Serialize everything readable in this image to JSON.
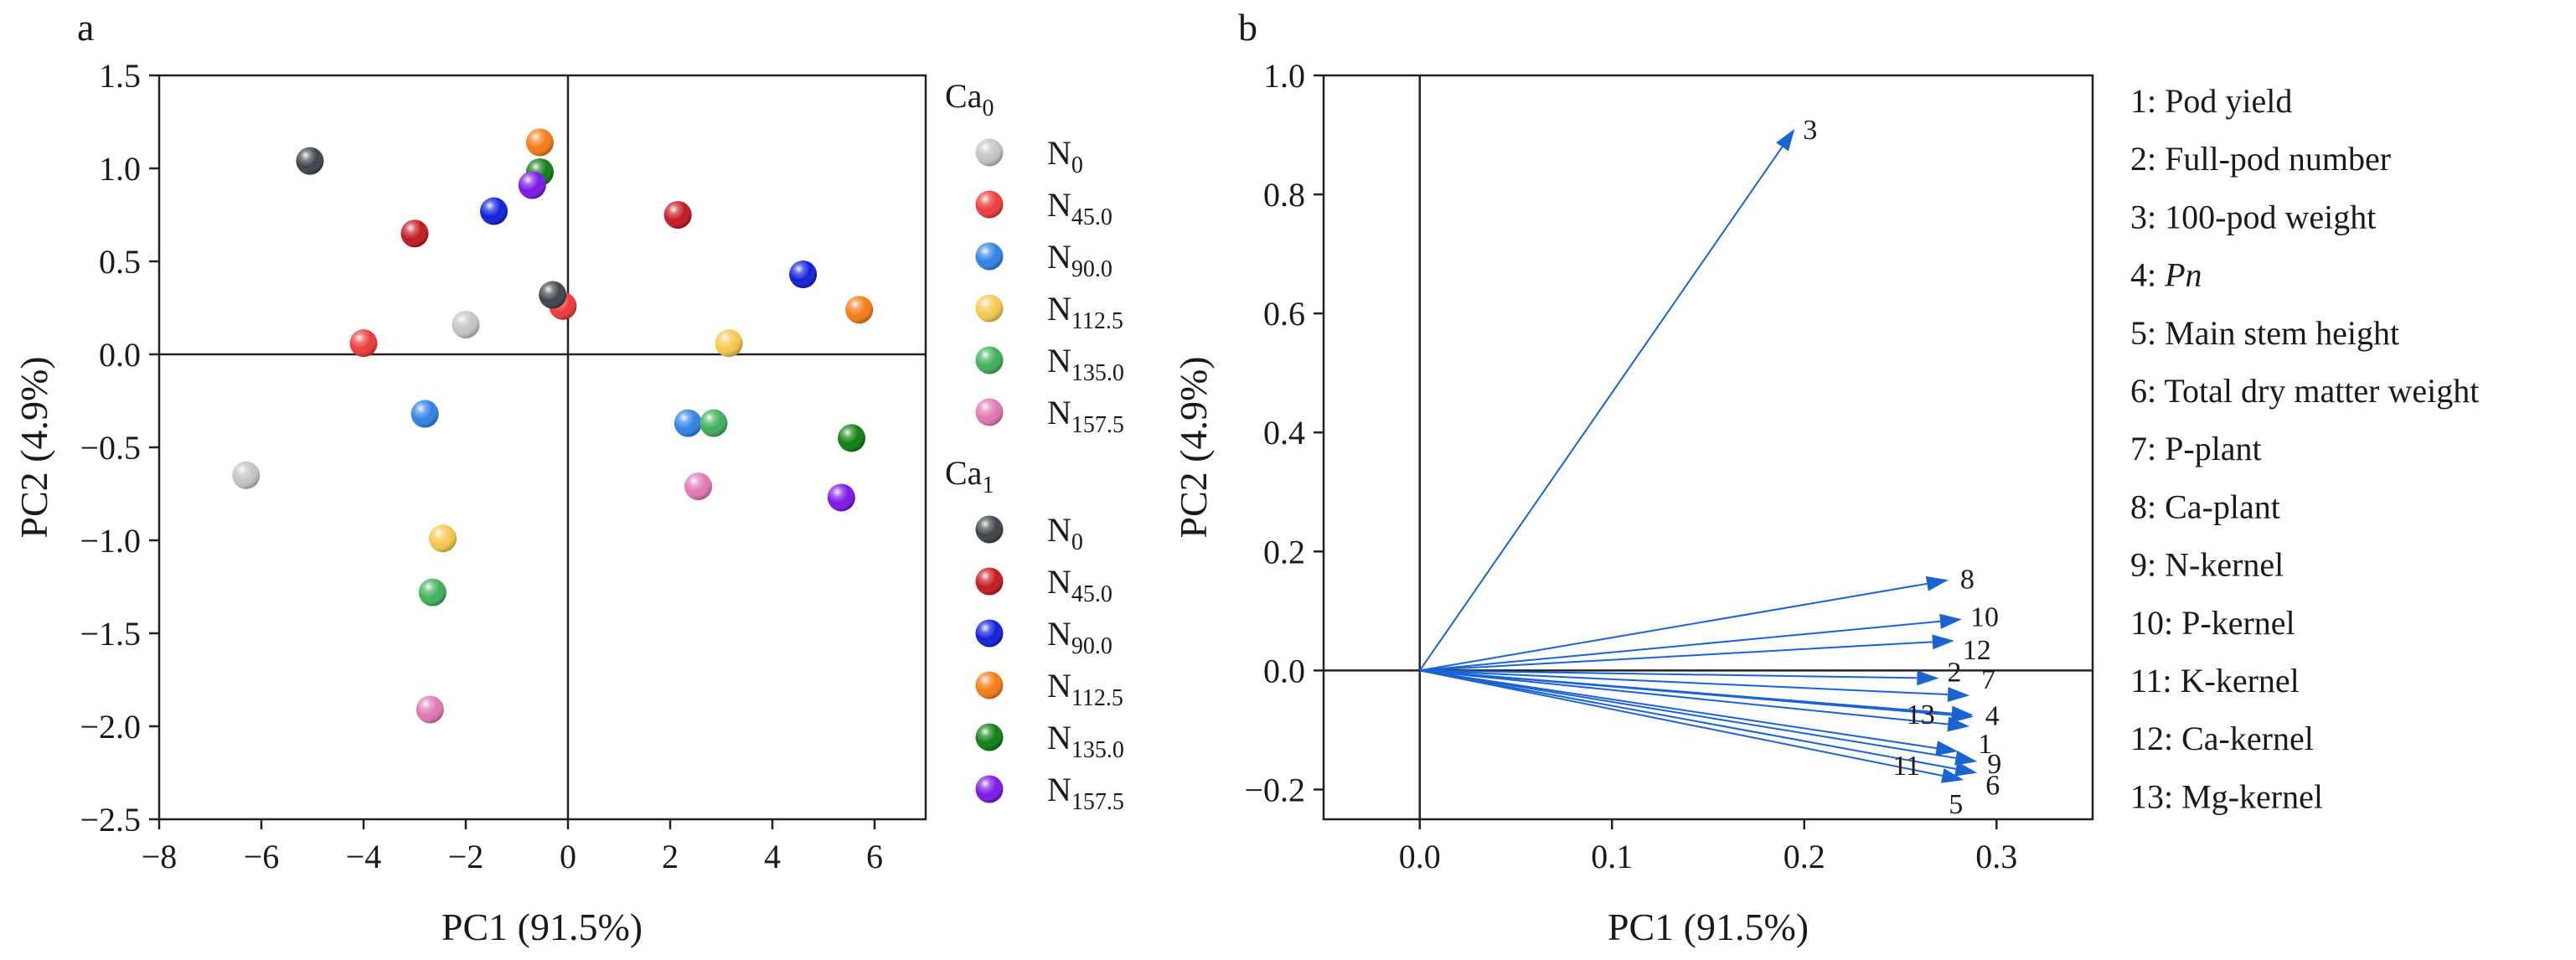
{
  "figure": {
    "panel_a": "a",
    "panel_b": "b"
  },
  "colors": {
    "Ca0": {
      "N0": "#c4c4c4",
      "N45.0": "#ee3b3b",
      "N90.0": "#2f82e6",
      "N112.5": "#f7c84e",
      "N135.0": "#3fb05a",
      "N157.5": "#e178b4"
    },
    "Ca1": {
      "N0": "#3f444a",
      "N45.0": "#c41820",
      "N90.0": "#0f1fd9",
      "N112.5": "#f57b16",
      "N135.0": "#0d7f12",
      "N157.5": "#7d15e8"
    },
    "arrow": "#1a63d1"
  },
  "chart_data": [
    {
      "type": "scatter",
      "panel": "a",
      "xlabel": "PC1 (91.5%)",
      "ylabel": "PC2 (4.9%)",
      "xlim": [
        -8,
        7
      ],
      "ylim": [
        -2.5,
        1.5
      ],
      "xticks": [
        -8,
        -6,
        -4,
        -2,
        0,
        2,
        4,
        6
      ],
      "xticklabels": [
        "−8",
        "−6",
        "−4",
        "−2",
        "0",
        "2",
        "4",
        "6"
      ],
      "yticks": [
        1.5,
        1.0,
        0.5,
        0.0,
        -0.5,
        -1.0,
        -1.5,
        -2.0,
        -2.5
      ],
      "yticklabels": [
        "1.5",
        "1.0",
        "0.5",
        "0.0",
        "−0.5",
        "−1.0",
        "−1.5",
        "−2.0",
        "−2.5"
      ],
      "legend": {
        "groups": [
          {
            "base": "Ca",
            "sub": "0",
            "items": [
              {
                "key": "N0",
                "base": "N",
                "sub": "0"
              },
              {
                "key": "N45.0",
                "base": "N",
                "sub": "45.0"
              },
              {
                "key": "N90.0",
                "base": "N",
                "sub": "90.0"
              },
              {
                "key": "N112.5",
                "base": "N",
                "sub": "112.5"
              },
              {
                "key": "N135.0",
                "base": "N",
                "sub": "135.0"
              },
              {
                "key": "N157.5",
                "base": "N",
                "sub": "157.5"
              }
            ]
          },
          {
            "base": "Ca",
            "sub": "1",
            "items": [
              {
                "key": "N0",
                "base": "N",
                "sub": "0"
              },
              {
                "key": "N45.0",
                "base": "N",
                "sub": "45.0"
              },
              {
                "key": "N90.0",
                "base": "N",
                "sub": "90.0"
              },
              {
                "key": "N112.5",
                "base": "N",
                "sub": "112.5"
              },
              {
                "key": "N135.0",
                "base": "N",
                "sub": "135.0"
              },
              {
                "key": "N157.5",
                "base": "N",
                "sub": "157.5"
              }
            ]
          }
        ]
      },
      "series": [
        {
          "group": "Ca0",
          "name": "N0",
          "points": [
            [
              -6.3,
              -0.65
            ],
            [
              -2.0,
              0.16
            ]
          ]
        },
        {
          "group": "Ca0",
          "name": "N45.0",
          "points": [
            [
              -4.0,
              0.06
            ],
            [
              -0.1,
              0.26
            ]
          ]
        },
        {
          "group": "Ca0",
          "name": "N90.0",
          "points": [
            [
              -2.8,
              -0.32
            ],
            [
              2.35,
              -0.37
            ]
          ]
        },
        {
          "group": "Ca0",
          "name": "N112.5",
          "points": [
            [
              -2.45,
              -0.99
            ],
            [
              3.15,
              0.06
            ]
          ]
        },
        {
          "group": "Ca0",
          "name": "N135.0",
          "points": [
            [
              -2.65,
              -1.28
            ],
            [
              2.85,
              -0.37
            ]
          ]
        },
        {
          "group": "Ca0",
          "name": "N157.5",
          "points": [
            [
              -2.7,
              -1.91
            ],
            [
              2.55,
              -0.71
            ]
          ]
        },
        {
          "group": "Ca1",
          "name": "N0",
          "points": [
            [
              -5.05,
              1.04
            ],
            [
              -0.3,
              0.32
            ]
          ]
        },
        {
          "group": "Ca1",
          "name": "N45.0",
          "points": [
            [
              -3.0,
              0.65
            ],
            [
              2.15,
              0.75
            ]
          ]
        },
        {
          "group": "Ca1",
          "name": "N90.0",
          "points": [
            [
              -1.45,
              0.77
            ],
            [
              4.6,
              0.43
            ]
          ]
        },
        {
          "group": "Ca1",
          "name": "N112.5",
          "points": [
            [
              -0.55,
              1.14
            ],
            [
              5.7,
              0.24
            ]
          ]
        },
        {
          "group": "Ca1",
          "name": "N135.0",
          "points": [
            [
              -0.55,
              0.98
            ],
            [
              5.55,
              -0.45
            ]
          ]
        },
        {
          "group": "Ca1",
          "name": "N157.5",
          "points": [
            [
              -0.7,
              0.91
            ],
            [
              5.35,
              -0.77
            ]
          ]
        }
      ]
    },
    {
      "type": "line",
      "subtype": "loading-vectors",
      "panel": "b",
      "xlabel": "PC1 (91.5%)",
      "ylabel": "PC2 (4.9%)",
      "xlim": [
        -0.05,
        0.35
      ],
      "ylim": [
        -0.25,
        1.0
      ],
      "xticks": [
        0.0,
        0.1,
        0.2,
        0.3
      ],
      "xticklabels": [
        "0.0",
        "0.1",
        "0.2",
        "0.3"
      ],
      "yticks": [
        1.0,
        0.8,
        0.6,
        0.4,
        0.2,
        0.0,
        -0.2
      ],
      "yticklabels": [
        "1.0",
        "0.8",
        "0.6",
        "0.4",
        "0.2",
        "0.0",
        "−0.2"
      ],
      "vectors": [
        {
          "id": "1",
          "x": 0.286,
          "y": -0.094
        },
        {
          "id": "2",
          "x": 0.27,
          "y": -0.013
        },
        {
          "id": "3",
          "x": 0.195,
          "y": 0.91
        },
        {
          "id": "4",
          "x": 0.288,
          "y": -0.075
        },
        {
          "id": "5",
          "x": 0.283,
          "y": -0.184
        },
        {
          "id": "6",
          "x": 0.29,
          "y": -0.172
        },
        {
          "id": "7",
          "x": 0.286,
          "y": -0.042
        },
        {
          "id": "8",
          "x": 0.275,
          "y": 0.152
        },
        {
          "id": "9",
          "x": 0.29,
          "y": -0.153
        },
        {
          "id": "10",
          "x": 0.282,
          "y": 0.086
        },
        {
          "id": "11",
          "x": 0.28,
          "y": -0.136
        },
        {
          "id": "12",
          "x": 0.278,
          "y": 0.05
        },
        {
          "id": "13",
          "x": 0.288,
          "y": -0.078
        }
      ],
      "labels": [
        {
          "id": "1",
          "text": "1",
          "x": 0.286,
          "y": -0.094
        },
        {
          "id": "2",
          "text": "2",
          "x": 0.27,
          "y": -0.013
        },
        {
          "id": "3",
          "text": "3",
          "x": 0.195,
          "y": 0.91
        },
        {
          "id": "4",
          "text": "4",
          "x": 0.288,
          "y": -0.075
        },
        {
          "id": "5",
          "text": "5",
          "x": 0.283,
          "y": -0.184
        },
        {
          "id": "6",
          "text": "6",
          "x": 0.29,
          "y": -0.172
        },
        {
          "id": "7",
          "text": "7",
          "x": 0.286,
          "y": -0.042
        },
        {
          "id": "8",
          "text": "8",
          "x": 0.275,
          "y": 0.152
        },
        {
          "id": "9",
          "text": "9",
          "x": 0.29,
          "y": -0.153
        },
        {
          "id": "10",
          "text": "10",
          "x": 0.282,
          "y": 0.086
        },
        {
          "id": "11",
          "text": "11",
          "x": 0.28,
          "y": -0.136
        },
        {
          "id": "12",
          "text": "12",
          "x": 0.278,
          "y": 0.05
        },
        {
          "id": "13",
          "text": "13",
          "x": 0.288,
          "y": -0.078
        }
      ],
      "key": [
        {
          "num": "1",
          "text": "Pod yield",
          "italic": false
        },
        {
          "num": "2",
          "text": "Full-pod number",
          "italic": false
        },
        {
          "num": "3",
          "text": "100-pod weight",
          "italic": false
        },
        {
          "num": "4",
          "text": "Pn",
          "italic": true
        },
        {
          "num": "5",
          "text": "Main stem height",
          "italic": false
        },
        {
          "num": "6",
          "text": "Total dry matter weight",
          "italic": false
        },
        {
          "num": "7",
          "text": "P-plant",
          "italic": false
        },
        {
          "num": "8",
          "text": "Ca-plant",
          "italic": false
        },
        {
          "num": "9",
          "text": "N-kernel",
          "italic": false
        },
        {
          "num": "10",
          "text": "P-kernel",
          "italic": false
        },
        {
          "num": "11",
          "text": "K-kernel",
          "italic": false
        },
        {
          "num": "12",
          "text": "Ca-kernel",
          "italic": false
        },
        {
          "num": "13",
          "text": "Mg-kernel",
          "italic": false
        }
      ]
    }
  ]
}
